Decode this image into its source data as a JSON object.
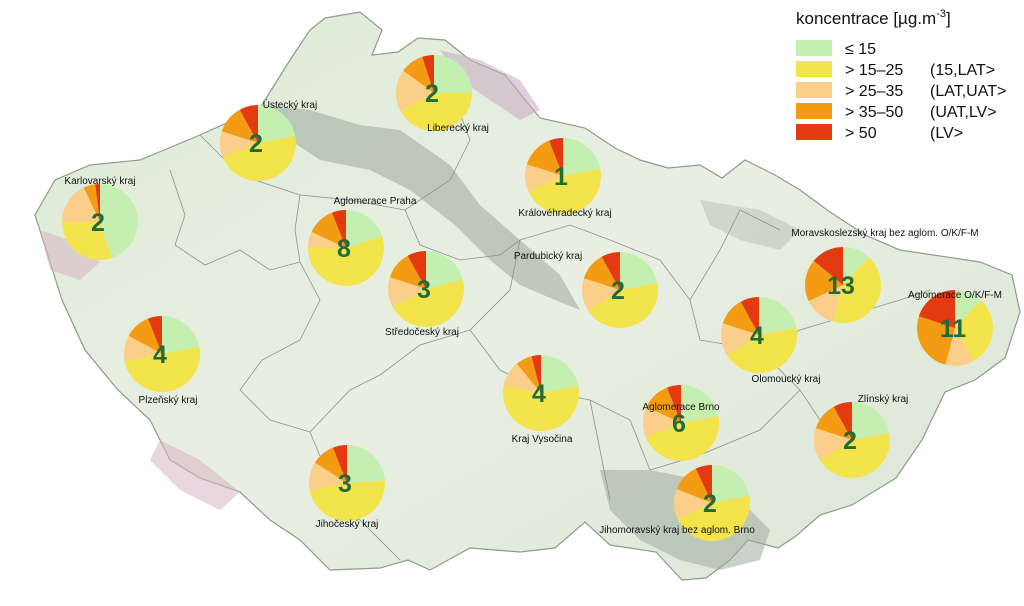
{
  "map": {
    "legend": {
      "title_main": "koncentrace [µg.m",
      "title_sup": "-3",
      "title_end": "]",
      "classes": [
        {
          "label": "≤ 15",
          "range": "",
          "color": "#c5efb0"
        },
        {
          "label": "> 15–25",
          "range": "(15,LAT>",
          "color": "#f3e44c"
        },
        {
          "label": "> 25–35",
          "range": "(LAT,UAT>",
          "color": "#fbcf8a"
        },
        {
          "label": "> 35–50",
          "range": "(UAT,LV>",
          "color": "#f39b12"
        },
        {
          "label": "> 50",
          "range": "(LV>",
          "color": "#e43a12"
        }
      ]
    },
    "regions": [
      {
        "name": "Karlovarský kraj",
        "count": "2",
        "shares": [
          0.45,
          0.3,
          0.18,
          0.05,
          0.02
        ]
      },
      {
        "name": "Ústecký kraj",
        "count": "2",
        "shares": [
          0.22,
          0.47,
          0.11,
          0.12,
          0.08
        ]
      },
      {
        "name": "Liberecký kraj",
        "count": "2",
        "shares": [
          0.25,
          0.42,
          0.18,
          0.1,
          0.05
        ]
      },
      {
        "name": "Královéhradecký kraj",
        "count": "1",
        "shares": [
          0.22,
          0.46,
          0.12,
          0.14,
          0.06
        ]
      },
      {
        "name": "Aglomerace Praha",
        "count": "8",
        "shares": [
          0.2,
          0.55,
          0.07,
          0.12,
          0.06
        ]
      },
      {
        "name": "Středočeský kraj",
        "count": "3",
        "shares": [
          0.21,
          0.46,
          0.13,
          0.12,
          0.08
        ]
      },
      {
        "name": "Pardubický kraj",
        "count": "2",
        "shares": [
          0.22,
          0.44,
          0.14,
          0.12,
          0.08
        ]
      },
      {
        "name": "Plzeňský kraj",
        "count": "4",
        "shares": [
          0.22,
          0.5,
          0.11,
          0.11,
          0.06
        ]
      },
      {
        "name": "Kraj Vysočina",
        "count": "4",
        "shares": [
          0.22,
          0.56,
          0.11,
          0.07,
          0.04
        ]
      },
      {
        "name": "Jihočeský kraj",
        "count": "3",
        "shares": [
          0.24,
          0.48,
          0.12,
          0.1,
          0.06
        ]
      },
      {
        "name": "Aglomerace Brno",
        "count": "6",
        "shares": [
          0.22,
          0.47,
          0.13,
          0.12,
          0.06
        ]
      },
      {
        "name": "Jihomoravský kraj bez aglom. Brno",
        "count": "2",
        "shares": [
          0.22,
          0.46,
          0.13,
          0.12,
          0.07
        ]
      },
      {
        "name": "Olomoucký kraj",
        "count": "4",
        "shares": [
          0.22,
          0.44,
          0.14,
          0.12,
          0.08
        ]
      },
      {
        "name": "Zlínský kraj",
        "count": "2",
        "shares": [
          0.22,
          0.44,
          0.14,
          0.12,
          0.08
        ]
      },
      {
        "name": "Moravskoslezský kraj bez aglom. O/K/F-M",
        "count": "13",
        "shares": [
          0.12,
          0.42,
          0.14,
          0.18,
          0.14
        ]
      },
      {
        "name": "Aglomerace O/K/F-M",
        "count": "11",
        "shares": [
          0.12,
          0.3,
          0.12,
          0.26,
          0.2
        ]
      }
    ]
  }
}
